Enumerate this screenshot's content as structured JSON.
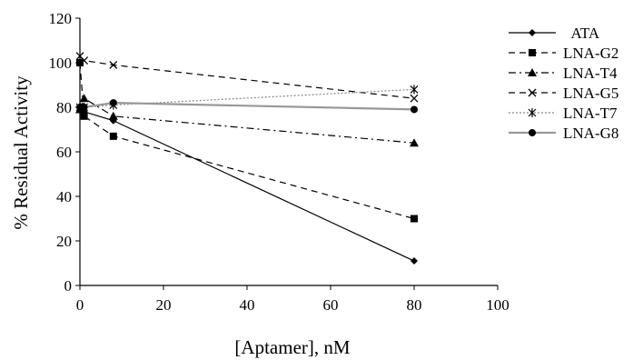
{
  "chart_data": {
    "type": "line",
    "title": "",
    "xlabel": "[Aptamer], nM",
    "ylabel": "% Residual Activity",
    "xlim": [
      0,
      100
    ],
    "ylim": [
      0,
      120
    ],
    "xticks": [
      0,
      20,
      40,
      60,
      80,
      100
    ],
    "yticks": [
      0,
      20,
      40,
      60,
      80,
      100,
      120
    ],
    "grid": false,
    "legend_position": "right",
    "series": [
      {
        "name": "ATA",
        "marker": "diamond",
        "dash": "solid",
        "color": "#000000",
        "x": [
          0,
          1,
          8,
          80
        ],
        "y": [
          80,
          78,
          74,
          11
        ]
      },
      {
        "name": "LNA-G2",
        "marker": "square",
        "dash": "dashed",
        "color": "#000000",
        "x": [
          0,
          1,
          8,
          80
        ],
        "y": [
          100,
          76,
          67,
          30
        ]
      },
      {
        "name": "LNA-T4",
        "marker": "triangle",
        "dash": "dashdot",
        "color": "#000000",
        "x": [
          0,
          1,
          8,
          80
        ],
        "y": [
          79,
          84,
          76,
          64
        ]
      },
      {
        "name": "LNA-G5",
        "marker": "x",
        "dash": "dashed",
        "color": "#000000",
        "x": [
          0,
          1,
          8,
          80
        ],
        "y": [
          103,
          101,
          99,
          84
        ]
      },
      {
        "name": "LNA-T7",
        "marker": "asterisk",
        "dash": "dotted",
        "color": "#888888",
        "x": [
          0,
          1,
          8,
          80
        ],
        "y": [
          80,
          80,
          81,
          88
        ]
      },
      {
        "name": "LNA-G8",
        "marker": "circle",
        "dash": "solid",
        "color": "#999999",
        "x": [
          0,
          1,
          8,
          80
        ],
        "y": [
          80,
          80,
          82,
          79
        ]
      }
    ]
  }
}
